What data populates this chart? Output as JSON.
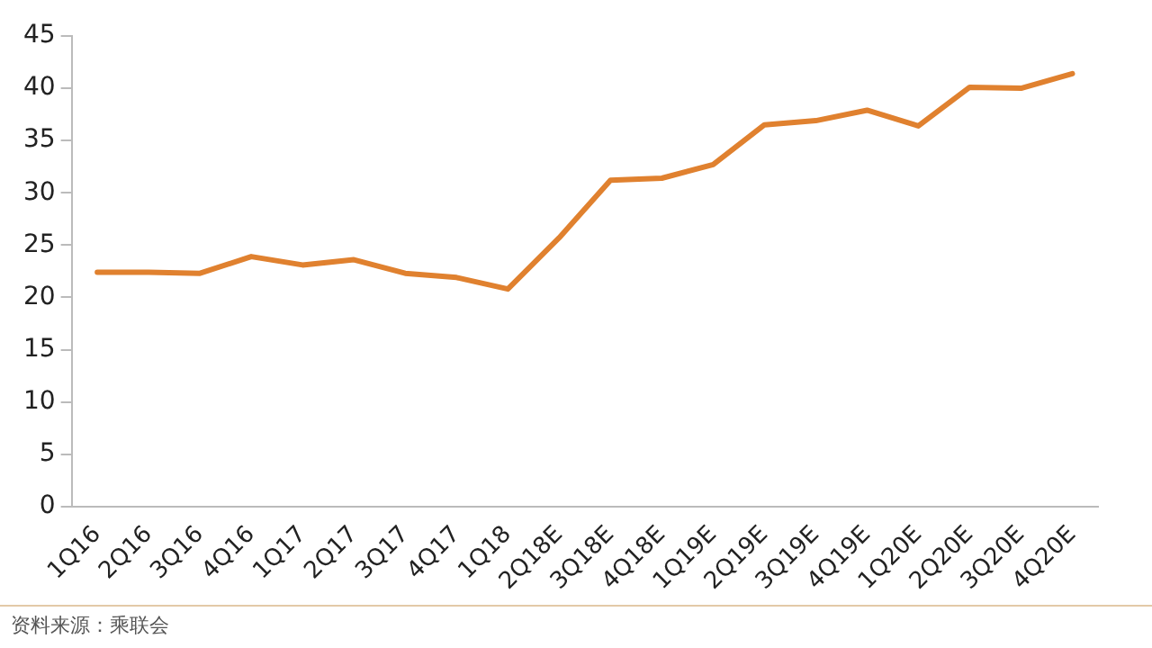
{
  "chart_data": {
    "type": "line",
    "categories": [
      "1Q16",
      "2Q16",
      "3Q16",
      "4Q16",
      "1Q17",
      "2Q17",
      "3Q17",
      "4Q17",
      "1Q18",
      "2Q18E",
      "3Q18E",
      "4Q18E",
      "1Q19E",
      "2Q19E",
      "3Q19E",
      "4Q19E",
      "1Q20E",
      "2Q20E",
      "3Q20E",
      "4Q20E"
    ],
    "series": [
      {
        "color": "#e0812f",
        "values": [
          22.4,
          22.4,
          22.3,
          23.9,
          23.1,
          23.6,
          22.3,
          21.9,
          20.8,
          25.7,
          31.2,
          31.4,
          32.7,
          36.5,
          36.9,
          37.9,
          36.4,
          40.1,
          40.0,
          41.4
        ]
      }
    ],
    "ylim": [
      0,
      45
    ],
    "yticks": [
      0,
      5,
      10,
      15,
      20,
      25,
      30,
      35,
      40,
      45
    ],
    "grid": false,
    "legend": false,
    "marker": "none",
    "annotations": [
      "资料来源：乘联会"
    ]
  }
}
